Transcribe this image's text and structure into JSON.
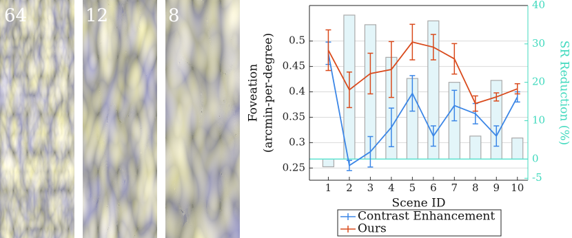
{
  "panels": [
    {
      "label": "64"
    },
    {
      "label": "12"
    },
    {
      "label": "8"
    }
  ],
  "chart_data": {
    "type": "combo",
    "xlabel": "Scene ID",
    "ylabel": [
      "Foveation",
      "(arcmin-per-degree)"
    ],
    "y2label": "SR Reduction (%)",
    "x": [
      1,
      2,
      3,
      4,
      5,
      6,
      7,
      8,
      9,
      10
    ],
    "xlim": [
      0.1,
      10.5
    ],
    "xticks": [
      1,
      2,
      3,
      4,
      5,
      6,
      7,
      8,
      9,
      10
    ],
    "ylim": [
      0.226,
      0.57
    ],
    "yticks": [
      0.25,
      0.3,
      0.35,
      0.4,
      0.45,
      0.5
    ],
    "y2lim": [
      -5.5,
      40
    ],
    "y2ticks": [
      -5,
      0,
      10,
      20,
      30,
      40
    ],
    "grid": true,
    "y2_color": "#3fd9bd",
    "zero_line_color": "#5fe3d0",
    "series": [
      {
        "type": "bar",
        "axis": "y2",
        "color": "#e3f5f9",
        "edge_color": "#a9a9a9",
        "values": [
          -2,
          37.5,
          35,
          26.5,
          21,
          36,
          20,
          6,
          20.5,
          5.5
        ]
      },
      {
        "type": "line",
        "name": "Contrast Enhancement",
        "color": "#3b86e6",
        "values": [
          0.476,
          0.255,
          0.282,
          0.33,
          0.397,
          0.313,
          0.373,
          0.357,
          0.313,
          0.39
        ],
        "errors": [
          0.022,
          0.01,
          0.03,
          0.038,
          0.035,
          0.02,
          0.03,
          0.02,
          0.02,
          0.01
        ]
      },
      {
        "type": "line",
        "name": "Ours",
        "color": "#d94a1c",
        "values": [
          0.482,
          0.404,
          0.436,
          0.444,
          0.498,
          0.488,
          0.465,
          0.377,
          0.39,
          0.406
        ],
        "errors": [
          0.04,
          0.035,
          0.04,
          0.055,
          0.035,
          0.025,
          0.03,
          0.015,
          0.008,
          0.01
        ]
      }
    ]
  }
}
